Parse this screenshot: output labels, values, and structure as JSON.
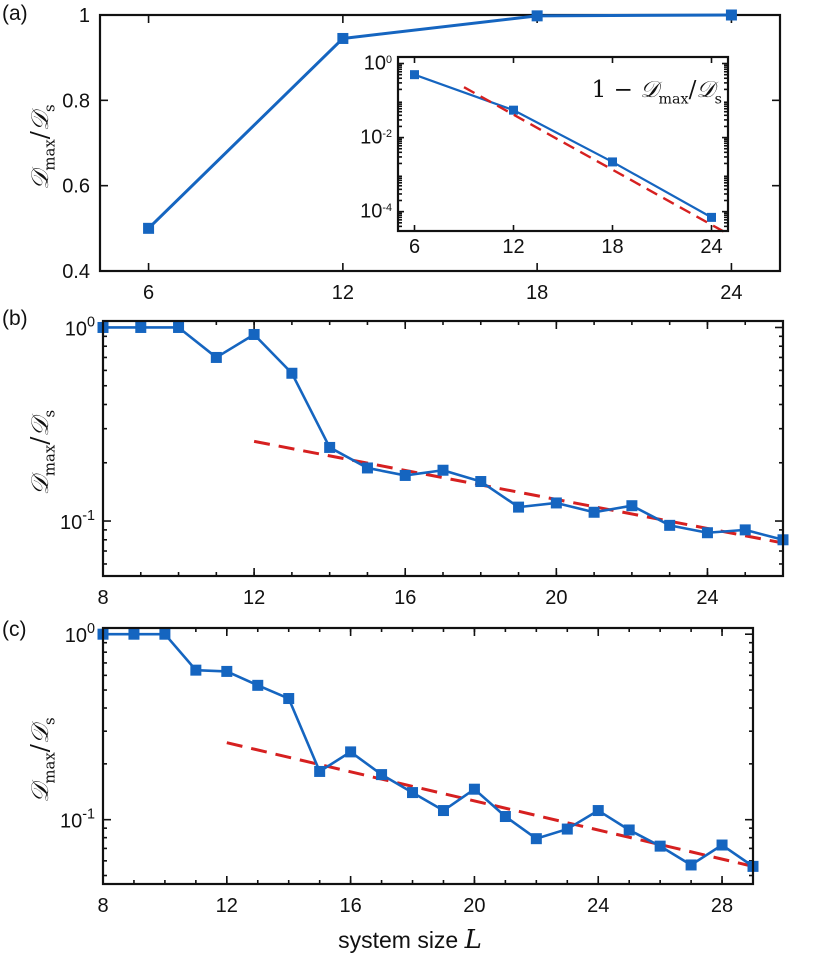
{
  "colors": {
    "series": "#1565c0",
    "fit": "#d62020",
    "axis": "#111111"
  },
  "xlabel_text": "system size",
  "xlabel_var": "L",
  "ylabel": {
    "main": "𝒟",
    "sub": "max",
    "den": "𝒟",
    "den_sub": "s"
  },
  "chart_data": [
    {
      "panel": "(a)",
      "type": "line",
      "x": [
        6,
        12,
        18,
        24
      ],
      "y": [
        0.5,
        0.945,
        0.998,
        1.0
      ],
      "xlim": [
        4.5,
        25.5
      ],
      "ylim": [
        0.4,
        1.0
      ],
      "xticks": [
        "6",
        "12",
        "18",
        "24"
      ],
      "yticks": [
        "0.4",
        "0.6",
        "0.8",
        "1"
      ],
      "yscale": "linear",
      "ylabel": "𝒟max/𝒟s",
      "inset": {
        "type": "line",
        "label_prefix": "1 − ",
        "label_main": "𝒟",
        "label_sub": "max",
        "label_den": "𝒟",
        "label_den_sub": "s",
        "x": [
          6,
          12,
          18,
          24
        ],
        "y": [
          0.5,
          0.055,
          0.0022,
          7e-05
        ],
        "xlim": [
          5,
          25
        ],
        "ylim": [
          3e-05,
          1.5
        ],
        "yscale": "log",
        "xticks": [
          "6",
          "12",
          "18",
          "24"
        ],
        "yticks": [
          {
            "base": "10",
            "exp": "0"
          },
          {
            "base": "10",
            "exp": "-2"
          },
          {
            "base": "10",
            "exp": "-4"
          }
        ],
        "fit_line": {
          "x": [
            9,
            25
          ],
          "y": [
            0.23,
            2.5e-05
          ]
        }
      }
    },
    {
      "panel": "(b)",
      "type": "line",
      "x": [
        8,
        9,
        10,
        11,
        12,
        13,
        14,
        15,
        16,
        17,
        18,
        19,
        20,
        21,
        22,
        23,
        24,
        25,
        26
      ],
      "y": [
        1.0,
        1.0,
        1.0,
        0.7,
        0.92,
        0.58,
        0.24,
        0.188,
        0.172,
        0.183,
        0.16,
        0.118,
        0.124,
        0.111,
        0.12,
        0.095,
        0.087,
        0.09,
        0.08
      ],
      "xlim": [
        8,
        26
      ],
      "ylim": [
        0.052,
        1.08
      ],
      "yscale": "log",
      "xticks": [
        "8",
        "12",
        "16",
        "20",
        "24"
      ],
      "yticks": [
        {
          "base": "10",
          "exp": "0"
        },
        {
          "base": "10",
          "exp": "-1"
        }
      ],
      "ylabel": "𝒟max/𝒟s",
      "fit_line": {
        "x": [
          12,
          26
        ],
        "y": [
          0.258,
          0.077
        ]
      }
    },
    {
      "panel": "(c)",
      "type": "line",
      "x": [
        8,
        9,
        10,
        11,
        12,
        13,
        14,
        15,
        16,
        17,
        18,
        19,
        20,
        21,
        22,
        23,
        24,
        25,
        26,
        27,
        28,
        29
      ],
      "y": [
        1.0,
        1.0,
        1.0,
        0.64,
        0.63,
        0.53,
        0.45,
        0.182,
        0.232,
        0.175,
        0.14,
        0.112,
        0.146,
        0.104,
        0.079,
        0.089,
        0.112,
        0.088,
        0.072,
        0.057,
        0.073,
        0.056
      ],
      "xlim": [
        8,
        29
      ],
      "ylim": [
        0.045,
        1.08
      ],
      "yscale": "log",
      "xticks": [
        "8",
        "12",
        "16",
        "20",
        "24",
        "28"
      ],
      "yticks": [
        {
          "base": "10",
          "exp": "0"
        },
        {
          "base": "10",
          "exp": "-1"
        }
      ],
      "ylabel": "𝒟max/𝒟s",
      "fit_line": {
        "x": [
          12,
          29
        ],
        "y": [
          0.26,
          0.056
        ]
      }
    }
  ]
}
